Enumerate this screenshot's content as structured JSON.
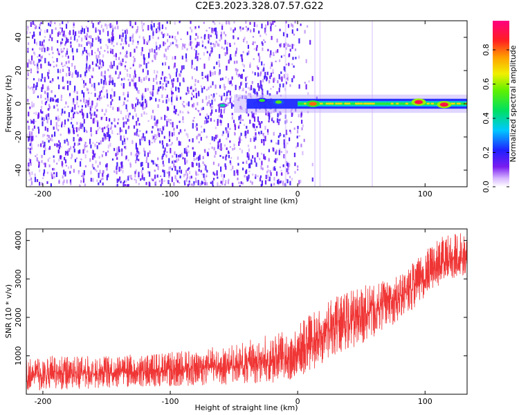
{
  "page": {
    "title": "C2E3.2023.328.07.57.G22"
  },
  "colors": {
    "snr_line": "#f03535",
    "spectrogram_background": "#ffffff",
    "spectrogram_scatter": "#7a1df0",
    "track_core": "#ff1a2a",
    "track_outer": "#0a1fd0"
  },
  "chart_data": [
    {
      "type": "heatmap",
      "title": "",
      "xlabel": "Height of straight line (km)",
      "ylabel": "Frequency (Hz)",
      "xlim": [
        -213,
        133
      ],
      "ylim": [
        -50,
        50
      ],
      "x_ticks": [
        -200,
        -100,
        0,
        100
      ],
      "y_ticks": [
        -40,
        -20,
        0,
        20,
        40
      ],
      "colorbar": {
        "label": "Normalized spectral amplitude",
        "range": [
          0,
          0.97
        ],
        "ticks": [
          0.0,
          0.2,
          0.4,
          0.6,
          0.8
        ],
        "colormap": "rainbow (white→purple→blue→cyan→green→yellow→orange→red→magenta)",
        "placement": "right"
      },
      "features": {
        "scatter_region_x": [
          -213,
          15
        ],
        "scatter_amplitude": 0.1,
        "track_start_x": -50,
        "track_frequency_hz": 0,
        "track_halfwidth_hz": 3,
        "track_core_amplitude": 0.85,
        "hotspots": [
          {
            "x": -59,
            "y": -1,
            "amplitude": 0.4
          },
          {
            "x": -28,
            "y": 2,
            "amplitude": 0.5
          },
          {
            "x": -15,
            "y": 1,
            "amplitude": 0.55
          },
          {
            "x": 12,
            "y": 0,
            "amplitude": 0.8
          },
          {
            "x": 95,
            "y": 1,
            "amplitude": 0.9
          },
          {
            "x": 115,
            "y": -0.5,
            "amplitude": 0.9
          }
        ]
      }
    },
    {
      "type": "line",
      "title": "",
      "xlabel": "Height of straight line (km)",
      "ylabel": "SNR (10 * v/v)",
      "xlim": [
        -213,
        133
      ],
      "ylim": [
        0,
        4300
      ],
      "x_ticks": [
        -200,
        -100,
        0,
        100
      ],
      "y_ticks": [
        1000,
        2000,
        3000,
        4000
      ],
      "series": [
        {
          "envelope": {
            "x": [
              -213,
              -200,
              -150,
              -100,
              -50,
              -20,
              0,
              20,
              50,
              80,
              100,
              110,
              120,
              133
            ],
            "y_min": [
              100,
              100,
              150,
              200,
              250,
              300,
              400,
              800,
              1300,
              1900,
              2500,
              2800,
              3000,
              3100
            ],
            "y_max": [
              900,
              1000,
              1000,
              1100,
              1300,
              1600,
              1800,
              2400,
              2800,
              3100,
              3700,
              4100,
              4200,
              4200
            ],
            "y_mean": [
              480,
              500,
              550,
              620,
              720,
              900,
              1000,
              1600,
              2050,
              2500,
              3000,
              3300,
              3500,
              3600
            ]
          }
        }
      ]
    }
  ]
}
